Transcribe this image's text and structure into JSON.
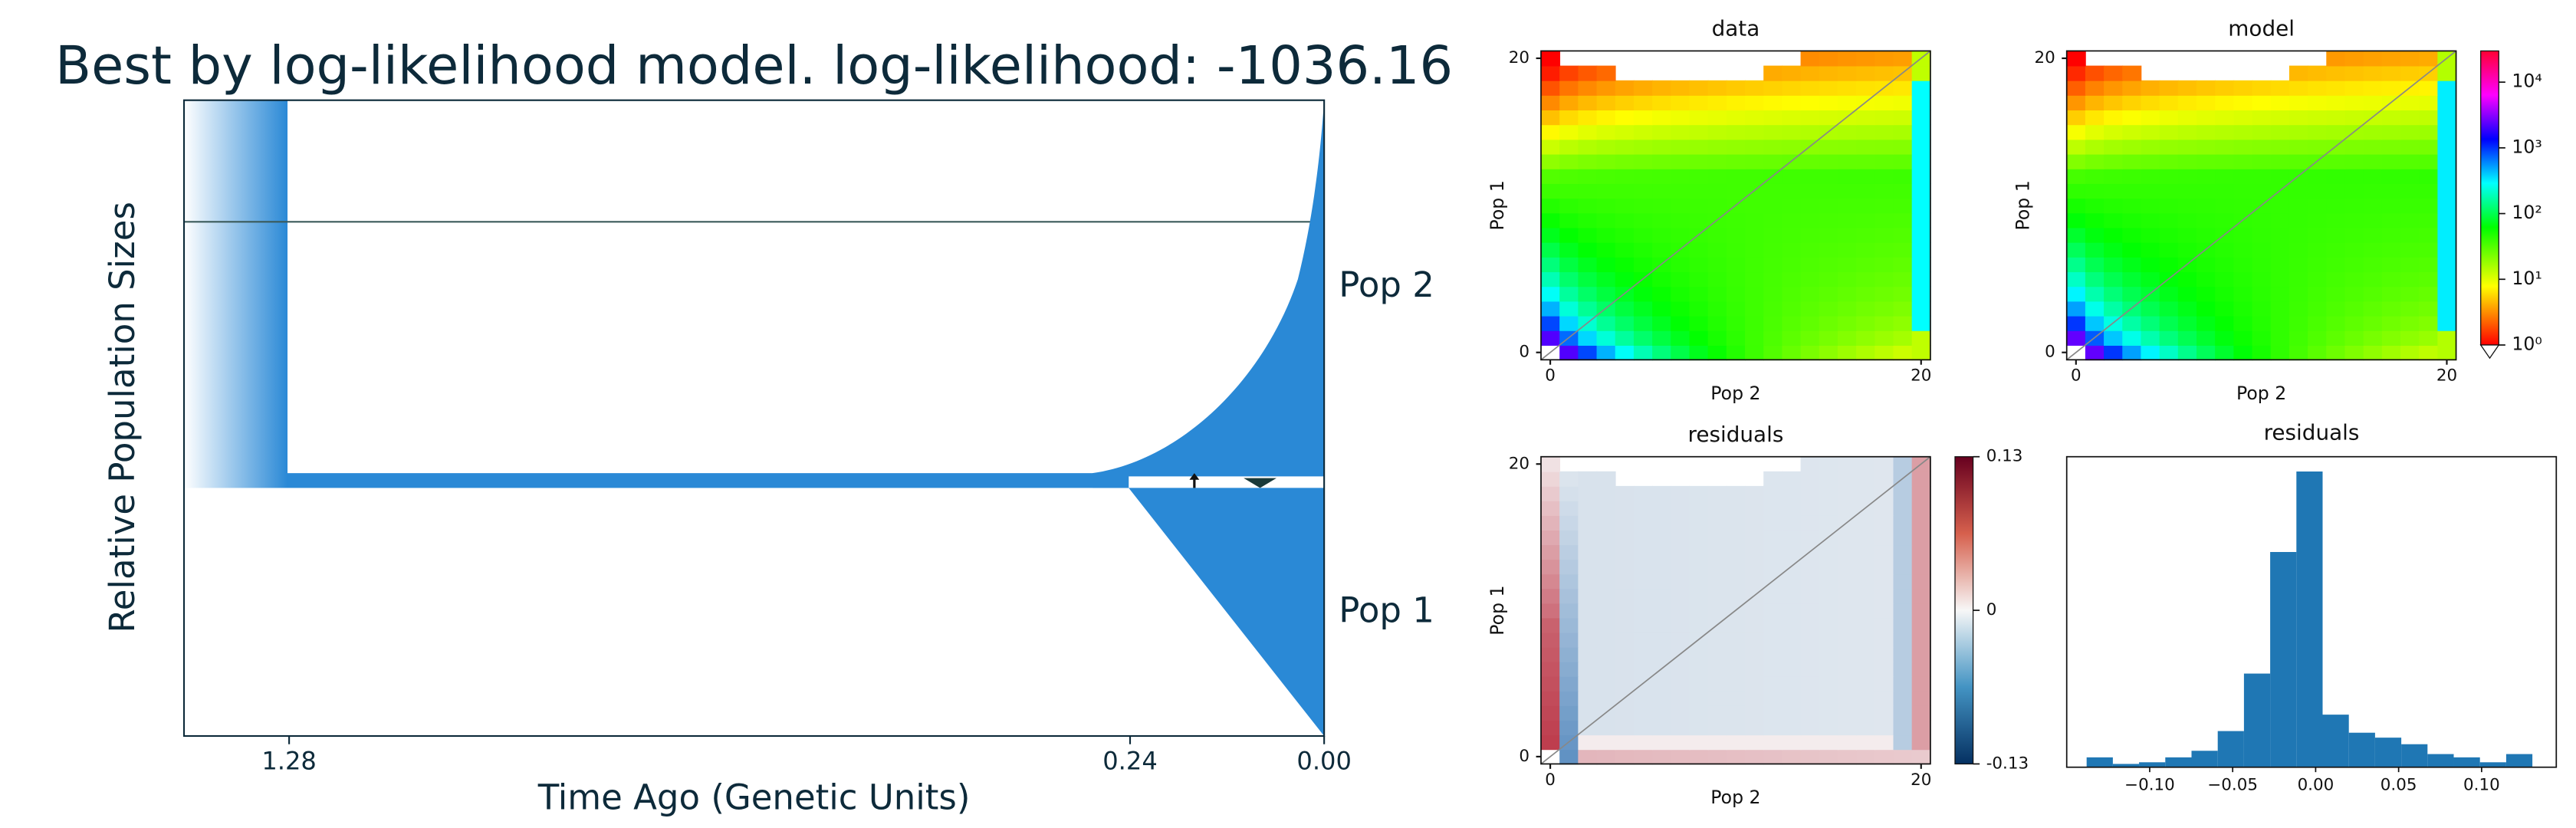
{
  "demography": {
    "title": "Best by log-likelihood model. log-likelihood: -1036.16",
    "ylabel": "Relative Population Sizes",
    "xlabel": "Time Ago (Genetic Units)",
    "xlim": [
      1.41,
      0
    ],
    "xticks": [
      1.28,
      0.24,
      {
        "value": 0,
        "label": "0.00"
      }
    ],
    "populations": [
      "Pop 2",
      "Pop 1"
    ]
  },
  "heatmaps": [
    {
      "title": "data",
      "xlabel": "Pop 2",
      "ylabel": "Pop 1",
      "xticks": [
        0,
        20
      ],
      "yticks": [
        0,
        20
      ]
    },
    {
      "title": "model",
      "xlabel": "Pop 2",
      "ylabel": "Pop 1",
      "xticks": [
        0,
        20
      ],
      "yticks": [
        0,
        20
      ]
    },
    {
      "title": "residuals",
      "xlabel": "Pop 2",
      "ylabel": "Pop 1",
      "xticks": [
        0,
        20
      ],
      "yticks": [
        0,
        20
      ]
    }
  ],
  "log_colorbar": {
    "log": true,
    "ticks": [
      {
        "value": 1,
        "label": "10⁰"
      },
      {
        "value": 10,
        "label": "10¹"
      },
      {
        "value": 100,
        "label": "10²"
      },
      {
        "value": 1000,
        "label": "10³"
      },
      {
        "value": 10000,
        "label": "10⁴"
      }
    ]
  },
  "residual_colorbar": {
    "ylim": [
      -0.13,
      0.13
    ],
    "ticks": [
      0.13,
      0,
      -0.13
    ]
  },
  "chart_data": {
    "type": "histogram",
    "title": "residuals",
    "bins": [
      -0.138,
      -0.1222,
      -0.1064,
      -0.0906,
      -0.0748,
      -0.059,
      -0.0432,
      -0.0274,
      -0.0116,
      0.0042,
      0.02,
      0.0358,
      0.0516,
      0.0674,
      0.0832,
      0.099,
      0.1148,
      0.1306
    ],
    "values": [
      6,
      2,
      3,
      6,
      10,
      22,
      57,
      131,
      180,
      32,
      21,
      18,
      14,
      8,
      6,
      3,
      8
    ],
    "color": "#1f77b4",
    "xlim": [
      -0.15,
      0.145
    ],
    "ylim": [
      0,
      189
    ],
    "xticks": [
      {
        "value": -0.1,
        "label": "−0.10"
      },
      {
        "value": -0.05,
        "label": "−0.05"
      },
      {
        "value": 0,
        "label": "0.00"
      },
      0.05,
      {
        "value": 0.1,
        "label": "0.10"
      }
    ]
  }
}
